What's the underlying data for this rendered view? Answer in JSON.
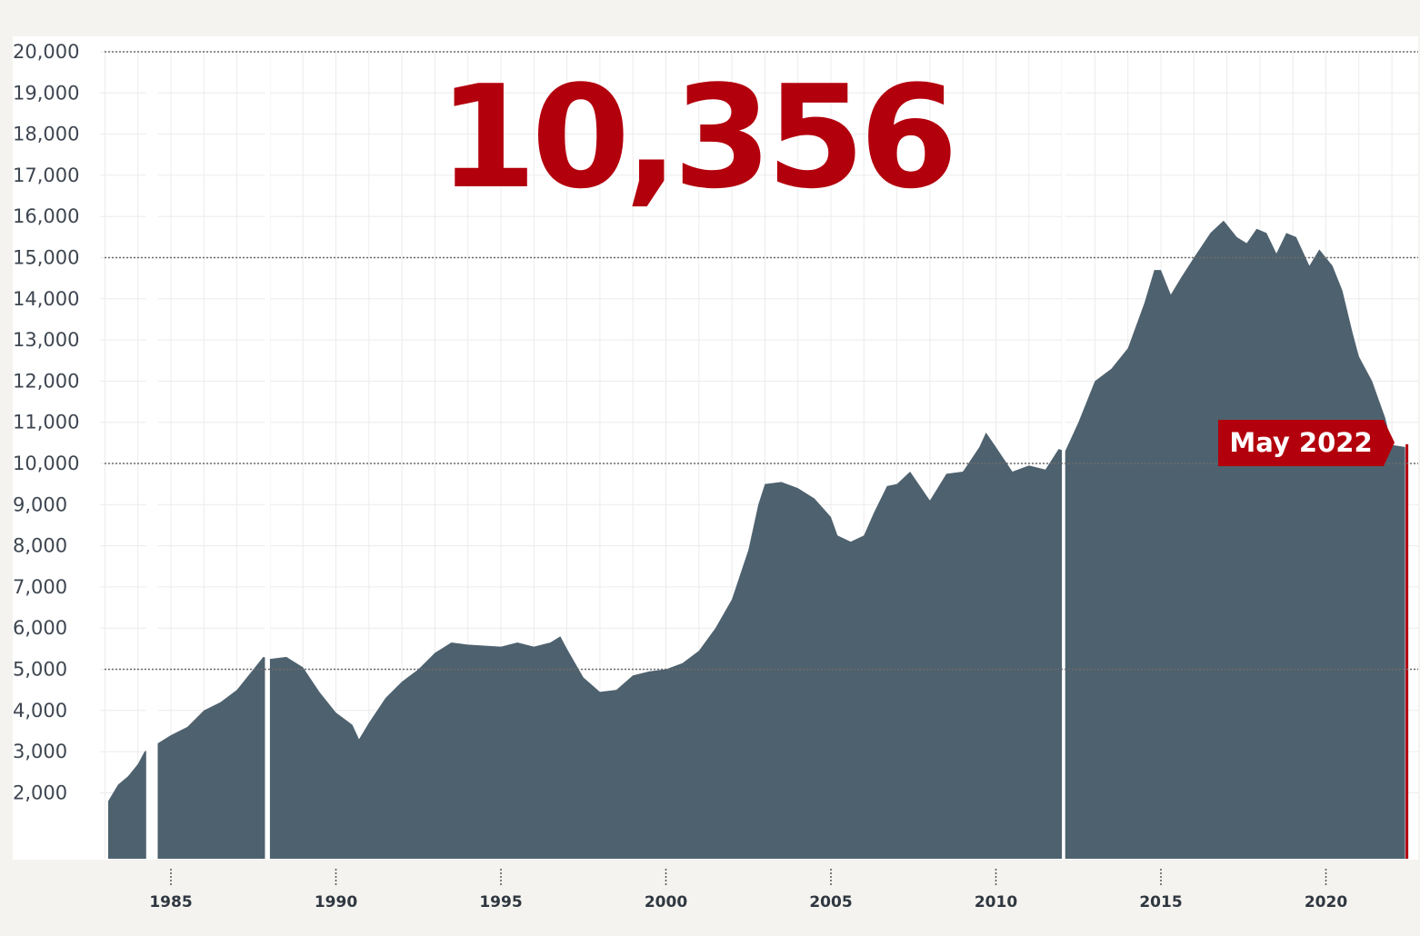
{
  "headline_value": "10,356",
  "callout_label": "May 2022",
  "colors": {
    "background": "#f4f3ef",
    "plot_background": "#ffffff",
    "area_fill": "#4e616e",
    "accent_red": "#b3000d",
    "grid_light": "#ececec",
    "ref_line": "#6d6d6d"
  },
  "chart_data": {
    "type": "area",
    "title": "",
    "xlabel": "",
    "ylabel": "",
    "xlim": [
      1981.3,
      2022.6
    ],
    "ylim": [
      0,
      20000
    ],
    "y_ticks": [
      2000,
      3000,
      4000,
      5000,
      6000,
      7000,
      8000,
      9000,
      10000,
      11000,
      12000,
      13000,
      14000,
      15000,
      16000,
      17000,
      18000,
      19000,
      20000
    ],
    "y_tick_labels": [
      "2,000",
      "3,000",
      "4,000",
      "5,000",
      "6,000",
      "7,000",
      "8,000",
      "9,000",
      "10,000",
      "11,000",
      "12,000",
      "13,000",
      "14,000",
      "15,000",
      "16,000",
      "17,000",
      "18,000",
      "19,000",
      "20,000"
    ],
    "reference_lines": [
      5000,
      10000,
      15000,
      20000
    ],
    "x_ticks": [
      1985,
      1990,
      1995,
      2000,
      2005,
      2010,
      2015,
      2020
    ],
    "x_tick_labels": [
      "1985",
      "1990",
      "1995",
      "2000",
      "2005",
      "2010",
      "2015",
      "2020"
    ],
    "gaps": [
      [
        1984.25,
        1984.6
      ],
      [
        1987.85,
        1988.0
      ],
      [
        2012.0,
        2012.1
      ]
    ],
    "series": [
      {
        "values": [
          [
            1983.1,
            1800
          ],
          [
            1983.4,
            2200
          ],
          [
            1983.7,
            2400
          ],
          [
            1984.0,
            2700
          ],
          [
            1984.2,
            3000
          ],
          [
            1984.6,
            3200
          ],
          [
            1985.0,
            3400
          ],
          [
            1985.5,
            3600
          ],
          [
            1986.0,
            4000
          ],
          [
            1986.5,
            4200
          ],
          [
            1987.0,
            4500
          ],
          [
            1987.5,
            5000
          ],
          [
            1987.8,
            5300
          ],
          [
            1988.0,
            5250
          ],
          [
            1988.5,
            5300
          ],
          [
            1989.0,
            5050
          ],
          [
            1989.5,
            4450
          ],
          [
            1990.0,
            3950
          ],
          [
            1990.5,
            3650
          ],
          [
            1990.7,
            3300
          ],
          [
            1991.0,
            3700
          ],
          [
            1991.5,
            4300
          ],
          [
            1992.0,
            4700
          ],
          [
            1992.5,
            5000
          ],
          [
            1993.0,
            5400
          ],
          [
            1993.5,
            5650
          ],
          [
            1994.0,
            5600
          ],
          [
            1995.0,
            5550
          ],
          [
            1995.5,
            5650
          ],
          [
            1996.0,
            5550
          ],
          [
            1996.5,
            5650
          ],
          [
            1996.8,
            5800
          ],
          [
            1997.0,
            5500
          ],
          [
            1997.5,
            4800
          ],
          [
            1998.0,
            4450
          ],
          [
            1998.5,
            4500
          ],
          [
            1999.0,
            4850
          ],
          [
            1999.5,
            4950
          ],
          [
            2000.0,
            5000
          ],
          [
            2000.5,
            5150
          ],
          [
            2001.0,
            5450
          ],
          [
            2001.5,
            6000
          ],
          [
            2002.0,
            6700
          ],
          [
            2002.5,
            7900
          ],
          [
            2002.8,
            9000
          ],
          [
            2003.0,
            9500
          ],
          [
            2003.5,
            9550
          ],
          [
            2004.0,
            9400
          ],
          [
            2004.5,
            9150
          ],
          [
            2005.0,
            8700
          ],
          [
            2005.2,
            8250
          ],
          [
            2005.6,
            8100
          ],
          [
            2006.0,
            8250
          ],
          [
            2006.3,
            8800
          ],
          [
            2006.7,
            9450
          ],
          [
            2007.0,
            9500
          ],
          [
            2007.4,
            9800
          ],
          [
            2008.0,
            9100
          ],
          [
            2008.5,
            9750
          ],
          [
            2009.0,
            9800
          ],
          [
            2009.5,
            10400
          ],
          [
            2009.7,
            10750
          ],
          [
            2010.0,
            10400
          ],
          [
            2010.5,
            9800
          ],
          [
            2011.0,
            9950
          ],
          [
            2011.5,
            9850
          ],
          [
            2011.9,
            10350
          ],
          [
            2012.1,
            10300
          ],
          [
            2012.5,
            11000
          ],
          [
            2013.0,
            12000
          ],
          [
            2013.5,
            12300
          ],
          [
            2014.0,
            12800
          ],
          [
            2014.5,
            13900
          ],
          [
            2014.8,
            14700
          ],
          [
            2015.0,
            14700
          ],
          [
            2015.3,
            14100
          ],
          [
            2015.6,
            14500
          ],
          [
            2016.0,
            15000
          ],
          [
            2016.5,
            15600
          ],
          [
            2016.9,
            15900
          ],
          [
            2017.3,
            15500
          ],
          [
            2017.6,
            15350
          ],
          [
            2017.9,
            15700
          ],
          [
            2018.2,
            15600
          ],
          [
            2018.5,
            15100
          ],
          [
            2018.8,
            15600
          ],
          [
            2019.1,
            15500
          ],
          [
            2019.5,
            14800
          ],
          [
            2019.8,
            15200
          ],
          [
            2020.2,
            14800
          ],
          [
            2020.5,
            14200
          ],
          [
            2020.8,
            13200
          ],
          [
            2021.0,
            12600
          ],
          [
            2021.4,
            12000
          ],
          [
            2021.8,
            11100
          ],
          [
            2022.0,
            10450
          ],
          [
            2022.4,
            10400
          ]
        ]
      }
    ],
    "highlight": {
      "x": 2022.4,
      "value": 10356
    }
  }
}
